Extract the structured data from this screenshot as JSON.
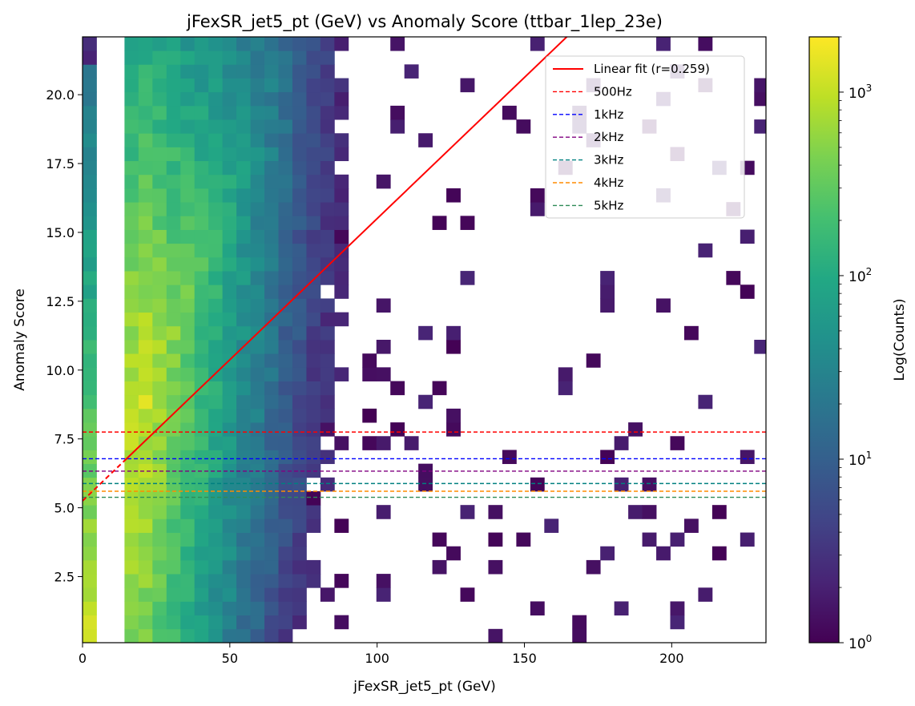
{
  "chart_data": {
    "type": "heatmap",
    "title": "jFexSR_jet5_pt (GeV) vs Anomaly Score (ttbar_1lep_23e)",
    "xlabel": "jFexSR_jet5_pt (GeV)",
    "ylabel": "Anomaly Score",
    "xlim": [
      0,
      232
    ],
    "ylim": [
      0.1,
      22.1
    ],
    "x_ticks": [
      0,
      50,
      100,
      150,
      200
    ],
    "x_tick_labels": [
      "0",
      "50",
      "100",
      "150",
      "200"
    ],
    "y_ticks": [
      2.5,
      5.0,
      7.5,
      10.0,
      12.5,
      15.0,
      17.5,
      20.0
    ],
    "y_tick_labels": [
      "2.5",
      "5.0",
      "7.5",
      "10.0",
      "12.5",
      "15.0",
      "17.5",
      "20.0"
    ],
    "colorbar": {
      "label": "Log(Counts)",
      "scale": "log",
      "range": [
        1,
        2000
      ],
      "colormap": "viridis",
      "ticks": [
        {
          "value": 1,
          "base": "10",
          "exp": "0"
        },
        {
          "value": 10,
          "base": "10",
          "exp": "1"
        },
        {
          "value": 100,
          "base": "10",
          "exp": "2"
        },
        {
          "value": 1000,
          "base": "10",
          "exp": "3"
        }
      ]
    },
    "fit_line": {
      "label": "Linear fit (r=0.259)",
      "color": "#ff0000",
      "intercept": 5.25,
      "slope": 0.1025,
      "solid_from_x": 14
    },
    "thresholds": [
      {
        "label": "500Hz",
        "y": 7.75,
        "color": "#ff0000"
      },
      {
        "label": "1kHz",
        "y": 6.78,
        "color": "#0000ff"
      },
      {
        "label": "2kHz",
        "y": 6.33,
        "color": "#800080"
      },
      {
        "label": "3kHz",
        "y": 5.88,
        "color": "#008080"
      },
      {
        "label": "4kHz",
        "y": 5.6,
        "color": "#ff8c00"
      },
      {
        "label": "5kHz",
        "y": 5.38,
        "color": "#2e8b57"
      }
    ],
    "legend_position": "upper-right",
    "bins": {
      "x_start": 0,
      "x_width": 4.75,
      "y_start": 0.1,
      "y_width": 0.5,
      "nx": 49,
      "ny": 44
    }
  }
}
